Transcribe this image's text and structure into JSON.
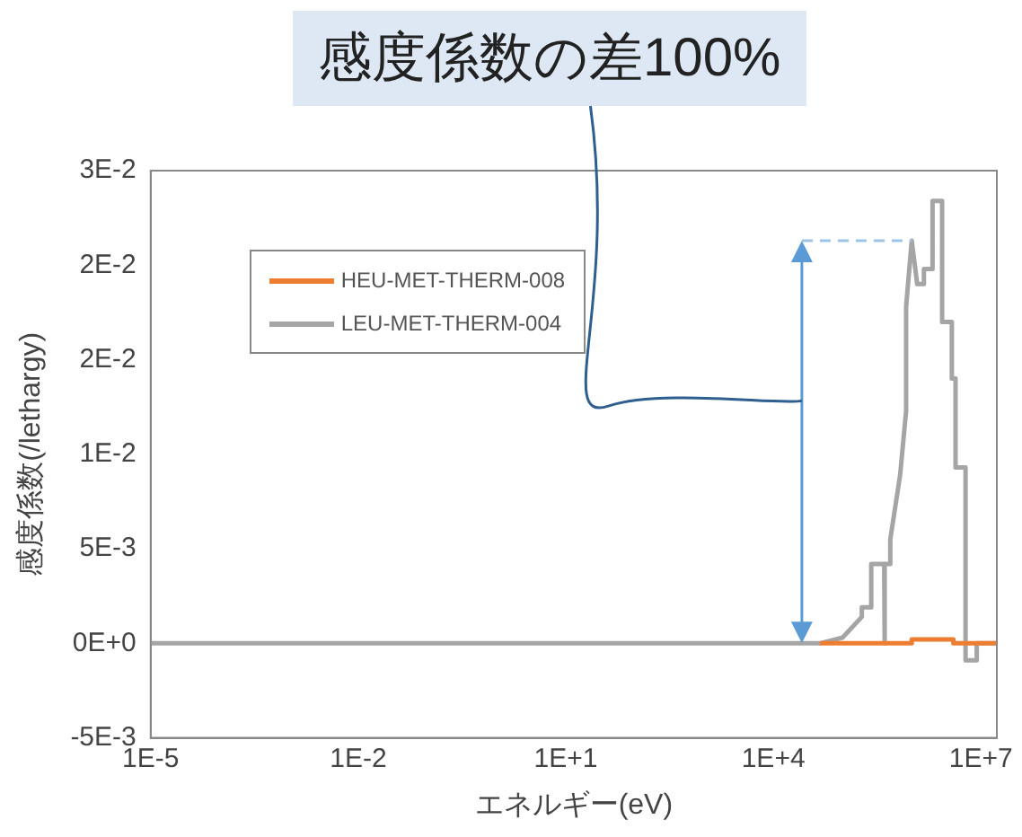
{
  "chart_data": {
    "type": "line",
    "xlabel": "エネルギー(eV)",
    "ylabel": "感度係数(/lethargy)",
    "log": "x",
    "legend": "top left",
    "marker": "none",
    "xlim": [
      1e-05,
      17000000
    ],
    "xticks": [
      {
        "value": 1e-05,
        "label": "1E-5"
      },
      {
        "value": 0.01,
        "label": "1E-2"
      },
      {
        "value": 10,
        "label": "1E+1"
      },
      {
        "value": 10000,
        "label": "1E+4"
      },
      {
        "value": 10000000,
        "label": "1E+7"
      }
    ],
    "ylim": [
      -0.005,
      0.025
    ],
    "yticks": [
      {
        "value": -0.005,
        "label": "-5E-3"
      },
      {
        "value": 0,
        "label": "0E+0"
      },
      {
        "value": 0.005,
        "label": "5E-3"
      },
      {
        "value": 0.01,
        "label": "1E-2"
      },
      {
        "value": 0.015,
        "label": "2E-2"
      },
      {
        "value": 0.02,
        "label": "2E-2"
      },
      {
        "value": 0.025,
        "label": "3E-2"
      }
    ],
    "annotations": [
      "感度係数の差100%"
    ],
    "series": [
      {
        "name": "HEU-MET-THERM-008",
        "color": "#ed7d31",
        "x": [
          47000,
          1000000,
          1000000,
          4000000,
          4000000,
          17000000
        ],
        "values": [
          0,
          0,
          0.0002,
          0.0002,
          0,
          0
        ]
      },
      {
        "name": "LEU-MET-THERM-004",
        "color": "#a5a5a5",
        "x": [
          1e-05,
          47000,
          100000,
          190000,
          190000,
          260000,
          260000,
          400000,
          400000,
          410000,
          410000,
          490000,
          490000,
          680000,
          680000,
          830000,
          830000,
          1000000,
          1200000,
          1200000,
          1500000,
          1500000,
          2000000,
          2000000,
          2750000,
          2750000,
          3800000,
          3800000,
          4300000,
          4300000,
          6000000,
          6000000,
          8700000,
          8700000,
          17000000
        ],
        "values": [
          0,
          0,
          0.0003,
          0.0014,
          0.0019,
          0.0019,
          0.0042,
          0.0042,
          0,
          0,
          0.0042,
          0.0042,
          0.0055,
          0.0089,
          0.0089,
          0.0123,
          0.0178,
          0.0213,
          0.019,
          0.019,
          0.019,
          0.0198,
          0.0198,
          0.0234,
          0.0234,
          0.017,
          0.017,
          0.014,
          0.014,
          0.0093,
          0.0093,
          -0.0009,
          -0.0009,
          0,
          0
        ]
      }
    ]
  }
}
